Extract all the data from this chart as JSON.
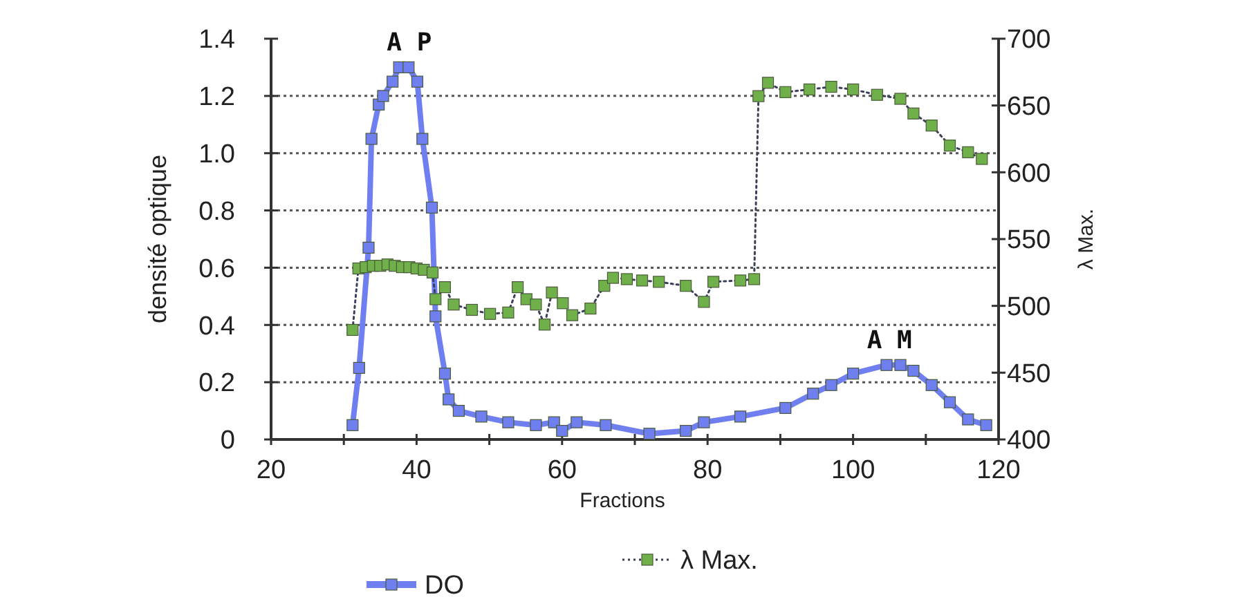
{
  "chart_data": {
    "type": "line",
    "xlabel": "Fractions",
    "ylabel": "densité optique",
    "y2label": "λ Max.",
    "xlim": [
      20,
      120
    ],
    "xticks": [
      20,
      {
        "value": 30,
        "label": null
      },
      40,
      {
        "value": 50,
        "label": null
      },
      60,
      {
        "value": 70,
        "label": null
      },
      80,
      {
        "value": 90,
        "label": null
      },
      100,
      {
        "value": 110,
        "label": null
      },
      120
    ],
    "ylim": [
      0,
      1.4
    ],
    "yticks": [
      0,
      0.2,
      0.4,
      0.6,
      0.8,
      {
        "value": 1,
        "label": "1.0"
      },
      1.2,
      1.4
    ],
    "y2lim": [
      400,
      700
    ],
    "y2ticks": [
      400,
      450,
      500,
      550,
      600,
      650,
      700
    ],
    "grid": "y",
    "legend": "bottom",
    "annotations": [
      {
        "text": "A P",
        "x": 39,
        "y": 1.3
      },
      {
        "text": "A M",
        "x": 105,
        "y": 0.26
      }
    ],
    "series": [
      {
        "name": "DO",
        "color": "#6f7ff0",
        "marker": "square",
        "line_style": "solid",
        "x": [
          31.2,
          32.1,
          33.4,
          33.8,
          34.8,
          35.4,
          36.7,
          37.6,
          38.9,
          40.1,
          40.8,
          42.1,
          42.6,
          43.9,
          44.4,
          45.8,
          48.9,
          52.6,
          56.4,
          58.9,
          60,
          62,
          66,
          72,
          77,
          79.5,
          84.5,
          90.7,
          94.5,
          97,
          100,
          104.6,
          106.5,
          108.3,
          110.8,
          113.3,
          115.8,
          118.3
        ],
        "values": [
          0.05,
          0.25,
          0.67,
          1.05,
          1.17,
          1.2,
          1.25,
          1.3,
          1.3,
          1.25,
          1.05,
          0.81,
          0.43,
          0.23,
          0.14,
          0.1,
          0.08,
          0.06,
          0.05,
          0.06,
          0.03,
          0.06,
          0.05,
          0.02,
          0.03,
          0.06,
          0.08,
          0.11,
          0.16,
          0.19,
          0.23,
          0.26,
          0.26,
          0.24,
          0.19,
          0.13,
          0.07,
          0.05
        ]
      },
      {
        "name": "λ Max.",
        "color": "#6fb04a",
        "axis": "y2",
        "marker": "square",
        "line_style": "dotted",
        "x": [
          31.2,
          32,
          33,
          34,
          35,
          36,
          37,
          38,
          39,
          40,
          41,
          42.2,
          42.6,
          43.9,
          45.1,
          47.6,
          50.1,
          52.6,
          53.9,
          55.1,
          56.4,
          57.6,
          58.6,
          60.1,
          61.4,
          63.9,
          65.8,
          67,
          68.9,
          71,
          73.3,
          77,
          79.5,
          80.8,
          84.5,
          86.4,
          87,
          88.3,
          90.7,
          94,
          97,
          100,
          103.3,
          106.5,
          108.3,
          110.8,
          113.3,
          115.8,
          117.7
        ],
        "values": [
          482,
          528,
          529,
          530,
          530,
          531,
          530,
          529,
          529,
          528,
          527,
          525,
          505,
          514,
          501,
          497,
          494,
          495,
          514,
          505,
          501,
          486,
          510,
          502,
          493,
          498,
          515,
          521,
          520,
          519,
          518,
          515,
          503,
          518,
          519,
          520,
          657,
          667,
          660,
          662,
          664,
          662,
          658,
          655,
          644,
          635,
          620,
          615,
          610
        ]
      }
    ]
  }
}
